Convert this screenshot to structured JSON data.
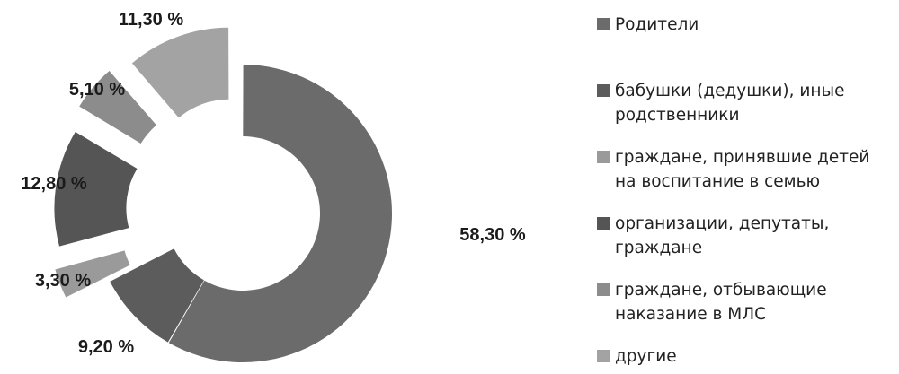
{
  "chart_data": {
    "type": "pie",
    "variant": "exploded-donut",
    "categories": [
      "Родители",
      "бабушки (дедушки), иные родственники",
      "граждане, принявшие детей на воспитание в семью",
      "организации, депутаты, граждане",
      "граждане, отбывающие наказание в МЛС",
      "другие"
    ],
    "values": [
      58.3,
      9.2,
      3.3,
      12.8,
      5.1,
      11.3
    ],
    "value_labels": [
      "58,30 %",
      "9,20 %",
      "3,30 %",
      "12,80 %",
      "5,10 %",
      "11,30 %"
    ],
    "colors": [
      "#6b6b6b",
      "#5c5c5c",
      "#9a9a9a",
      "#555555",
      "#8c8c8c",
      "#a3a3a3"
    ],
    "legend_position": "right",
    "title": ""
  }
}
